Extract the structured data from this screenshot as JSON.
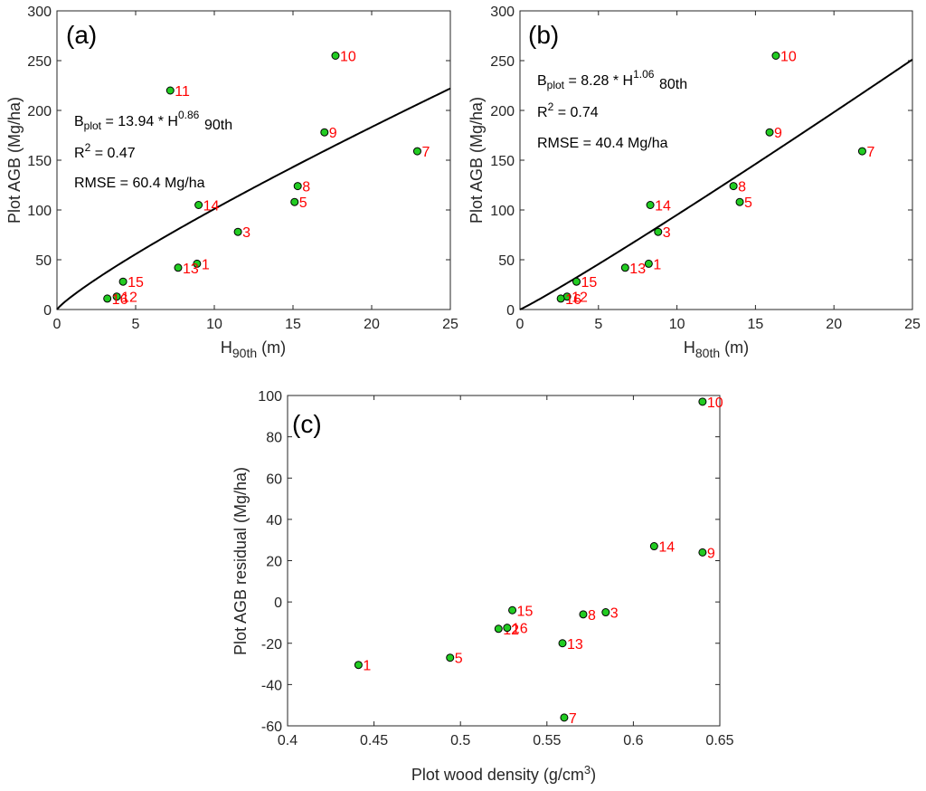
{
  "chart_data": [
    {
      "id": "a",
      "type": "scatter",
      "panel_label": "(a)",
      "xlabel": {
        "main": "H",
        "sub": "90th",
        "unit": " (m)"
      },
      "ylabel": "Plot AGB (Mg/ha)",
      "xlim": [
        0,
        25
      ],
      "ylim": [
        0,
        300
      ],
      "xticks": [
        0,
        5,
        10,
        15,
        20,
        25
      ],
      "yticks": [
        0,
        50,
        100,
        150,
        200,
        250,
        300
      ],
      "points": [
        {
          "label": "1",
          "x": 8.9,
          "y": 46
        },
        {
          "label": "3",
          "x": 11.5,
          "y": 78
        },
        {
          "label": "5",
          "x": 15.1,
          "y": 108
        },
        {
          "label": "7",
          "x": 22.9,
          "y": 159
        },
        {
          "label": "8",
          "x": 15.3,
          "y": 124
        },
        {
          "label": "9",
          "x": 17.0,
          "y": 178
        },
        {
          "label": "10",
          "x": 17.7,
          "y": 255
        },
        {
          "label": "11",
          "x": 7.2,
          "y": 220
        },
        {
          "label": "12",
          "x": 3.8,
          "y": 13
        },
        {
          "label": "13",
          "x": 7.7,
          "y": 42
        },
        {
          "label": "14",
          "x": 9.0,
          "y": 105
        },
        {
          "label": "15",
          "x": 4.2,
          "y": 28
        },
        {
          "label": "16",
          "x": 3.2,
          "y": 11
        }
      ],
      "fit": {
        "a": 13.94,
        "b": 0.86
      },
      "annotation": {
        "eq_B": "B",
        "eq_B_sub": "plot",
        "eq_mid": " = 13.94 * H",
        "eq_exp": "0.86",
        "eq_sub": "90th",
        "r2_R": "R",
        "r2_exp": "2",
        "r2_val": " = 0.47",
        "rmse": "RMSE = 60.4 Mg/ha"
      }
    },
    {
      "id": "b",
      "type": "scatter",
      "panel_label": "(b)",
      "xlabel": {
        "main": "H",
        "sub": "80th",
        "unit": " (m)"
      },
      "ylabel": "Plot AGB (Mg/ha)",
      "xlim": [
        0,
        25
      ],
      "ylim": [
        0,
        300
      ],
      "xticks": [
        0,
        5,
        10,
        15,
        20,
        25
      ],
      "yticks": [
        0,
        50,
        100,
        150,
        200,
        250,
        300
      ],
      "points": [
        {
          "label": "1",
          "x": 8.2,
          "y": 46
        },
        {
          "label": "3",
          "x": 8.8,
          "y": 78
        },
        {
          "label": "5",
          "x": 14.0,
          "y": 108
        },
        {
          "label": "7",
          "x": 21.8,
          "y": 159
        },
        {
          "label": "8",
          "x": 13.6,
          "y": 124
        },
        {
          "label": "9",
          "x": 15.9,
          "y": 178
        },
        {
          "label": "10",
          "x": 16.3,
          "y": 255
        },
        {
          "label": "12",
          "x": 3.0,
          "y": 13
        },
        {
          "label": "13",
          "x": 6.7,
          "y": 42
        },
        {
          "label": "14",
          "x": 8.3,
          "y": 105
        },
        {
          "label": "15",
          "x": 3.6,
          "y": 28
        },
        {
          "label": "16",
          "x": 2.6,
          "y": 11
        }
      ],
      "fit": {
        "a": 8.28,
        "b": 1.06
      },
      "annotation": {
        "eq_B": "B",
        "eq_B_sub": "plot",
        "eq_mid": " = 8.28 * H",
        "eq_exp": "1.06",
        "eq_sub": "80th",
        "r2_R": "R",
        "r2_exp": "2",
        "r2_val": " = 0.74",
        "rmse": "RMSE = 40.4 Mg/ha"
      }
    },
    {
      "id": "c",
      "type": "scatter",
      "panel_label": "(c)",
      "xlabel": {
        "main": "Plot wood density (g/cm",
        "sup": "3",
        "tail": ")"
      },
      "ylabel": "Plot AGB residual (Mg/ha)",
      "xlim": [
        0.4,
        0.65
      ],
      "ylim": [
        -60,
        100
      ],
      "xticks": [
        0.4,
        0.45,
        0.5,
        0.55,
        0.6,
        0.65
      ],
      "xticklabels": [
        "0.4",
        "0.45",
        "0.5",
        "0.55",
        "0.6",
        "0.65"
      ],
      "yticks": [
        -60,
        -40,
        -20,
        0,
        20,
        40,
        60,
        80,
        100
      ],
      "points": [
        {
          "label": "1",
          "x": 0.441,
          "y": -30.5
        },
        {
          "label": "3",
          "x": 0.584,
          "y": -5
        },
        {
          "label": "5",
          "x": 0.494,
          "y": -27
        },
        {
          "label": "7",
          "x": 0.56,
          "y": -56
        },
        {
          "label": "8",
          "x": 0.571,
          "y": -6
        },
        {
          "label": "9",
          "x": 0.64,
          "y": 24
        },
        {
          "label": "10",
          "x": 0.64,
          "y": 97
        },
        {
          "label": "12",
          "x": 0.522,
          "y": -13
        },
        {
          "label": "13",
          "x": 0.559,
          "y": -20
        },
        {
          "label": "14",
          "x": 0.612,
          "y": 27
        },
        {
          "label": "15",
          "x": 0.53,
          "y": -4
        },
        {
          "label": "16",
          "x": 0.527,
          "y": -12.5
        }
      ]
    }
  ]
}
